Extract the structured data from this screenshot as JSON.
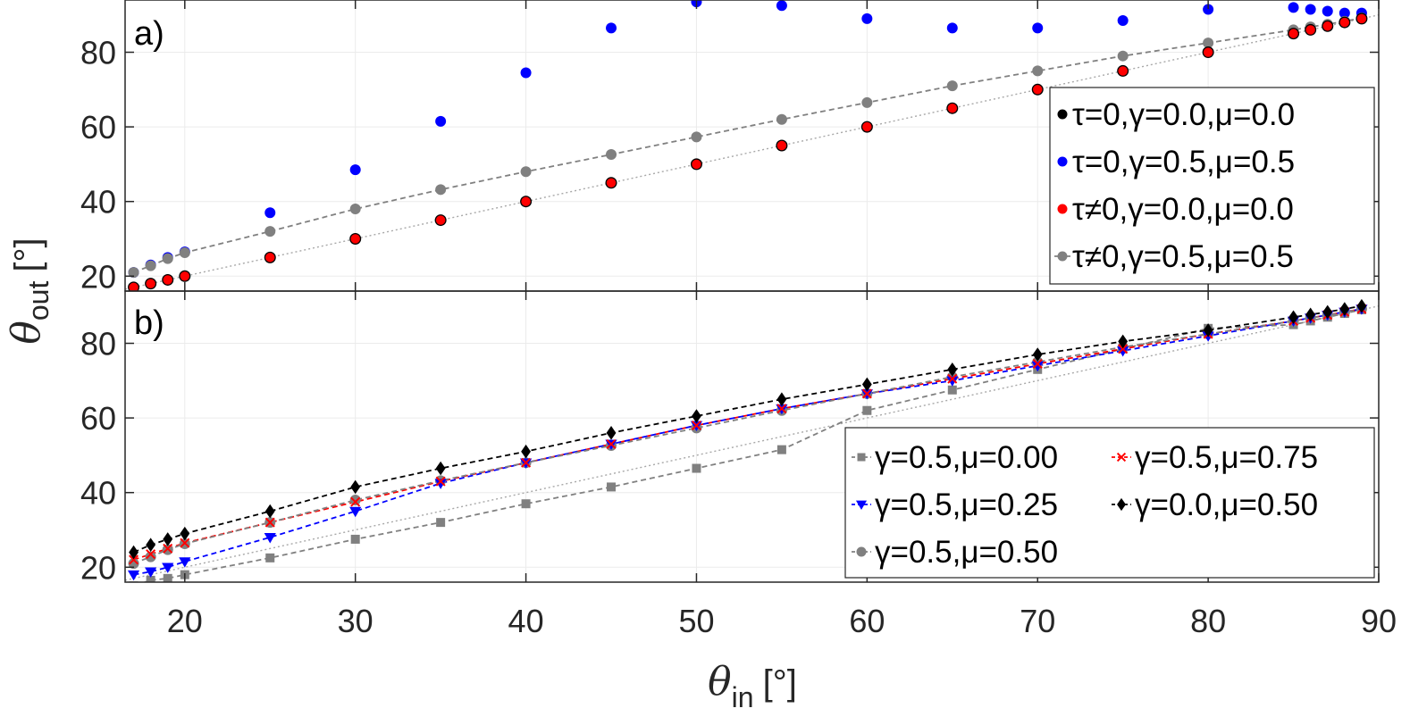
{
  "chart_data": [
    {
      "type": "scatter",
      "panel_label": "a)",
      "xlim": [
        16.5,
        90
      ],
      "ylim": [
        16,
        94
      ],
      "yticks": [
        20,
        40,
        60,
        80
      ],
      "grid": true,
      "legend_position": "right",
      "series": [
        {
          "key": "tau0_g0_m0",
          "name": "τ=0,γ=0.0,μ=0.0",
          "color": "#000000",
          "marker": "circle",
          "x": [
            17,
            18,
            19,
            20,
            25,
            30,
            35,
            40,
            45,
            50,
            55,
            60,
            65,
            70,
            75,
            80,
            85,
            86,
            87,
            88,
            89
          ],
          "y": [
            17,
            18,
            19,
            20,
            25,
            30,
            35,
            40,
            45,
            50,
            55,
            60,
            65,
            70,
            75,
            80,
            85,
            86,
            87,
            88,
            89
          ]
        },
        {
          "key": "tau0_g05_m05",
          "name": "τ=0,γ=0.5,μ=0.5",
          "color": "#0000ff",
          "marker": "circle",
          "x": [
            17,
            18,
            19,
            20,
            25,
            30,
            35,
            40,
            45,
            50,
            55,
            60,
            65,
            70,
            75,
            80,
            85,
            86,
            87,
            88,
            89
          ],
          "y": [
            21,
            23,
            25,
            26.5,
            37,
            48.5,
            61.5,
            74.5,
            86.5,
            93.5,
            92.5,
            89,
            86.5,
            86.5,
            88.5,
            91.5,
            92,
            91.5,
            91,
            90.5,
            90.5
          ]
        },
        {
          "key": "taun_g0_m0",
          "name": "τ≠0,γ=0.0,μ=0.0",
          "color": "#ff0000",
          "marker": "circle",
          "x": [
            17,
            18,
            19,
            20,
            25,
            30,
            35,
            40,
            45,
            50,
            55,
            60,
            65,
            70,
            75,
            80,
            85,
            86,
            87,
            88,
            89
          ],
          "y": [
            17,
            18,
            19,
            20,
            25,
            30,
            35,
            40,
            45,
            50,
            55,
            60,
            65,
            70,
            75,
            80,
            85,
            86,
            87,
            88,
            89
          ]
        },
        {
          "key": "taun_g05_m05",
          "name": "τ≠0,γ=0.5,μ=0.5",
          "color": "#808080",
          "marker": "circle",
          "line": "dashed",
          "x": [
            17,
            18,
            19,
            20,
            25,
            30,
            35,
            40,
            45,
            50,
            55,
            60,
            65,
            70,
            75,
            80,
            85,
            86,
            87,
            88,
            89
          ],
          "y": [
            21,
            22.8,
            24.7,
            26.3,
            32,
            38,
            43.2,
            48,
            52.6,
            57.3,
            62,
            66.5,
            71,
            75,
            79,
            82.5,
            86,
            86.8,
            87.5,
            88.3,
            89.2
          ]
        }
      ]
    },
    {
      "type": "line",
      "panel_label": "b)",
      "xlim": [
        16.5,
        90
      ],
      "ylim": [
        16,
        94
      ],
      "yticks": [
        20,
        40,
        60,
        80
      ],
      "xticks": [
        20,
        30,
        40,
        50,
        60,
        70,
        80,
        90
      ],
      "grid": true,
      "legend_position": "bottom-right",
      "series": [
        {
          "key": "g05_m000",
          "name": "γ=0.5,μ=0.00",
          "color": "#808080",
          "marker": "square",
          "line": "dashed",
          "x": [
            17,
            18,
            19,
            20,
            25,
            30,
            35,
            40,
            45,
            50,
            55,
            60,
            65,
            70,
            75,
            80,
            85,
            86,
            87,
            88,
            89
          ],
          "y": [
            15,
            16.5,
            17,
            18,
            22.5,
            27.5,
            32,
            37,
            41.5,
            46.5,
            51.5,
            62,
            67.5,
            73,
            78.5,
            84,
            85,
            86,
            87,
            88,
            89
          ]
        },
        {
          "key": "g05_m075",
          "name": "γ=0.5,μ=0.75",
          "color": "#ff0000",
          "marker": "x",
          "line": "dashed",
          "x": [
            17,
            18,
            19,
            20,
            25,
            30,
            35,
            40,
            45,
            50,
            55,
            60,
            65,
            70,
            75,
            80,
            85,
            86,
            87,
            88,
            89
          ],
          "y": [
            22,
            23.5,
            25,
            26.5,
            32,
            37.5,
            43,
            48,
            53,
            58,
            62.5,
            66.5,
            70.5,
            74.5,
            78.5,
            82.5,
            86,
            86.8,
            87.6,
            88.4,
            89.2
          ]
        },
        {
          "key": "g05_m025",
          "name": "γ=0.5,μ=0.25",
          "color": "#0000ff",
          "marker": "triangle-down",
          "line": "dashed",
          "x": [
            17,
            18,
            19,
            20,
            25,
            30,
            35,
            40,
            45,
            50,
            55,
            60,
            65,
            70,
            75,
            80,
            85,
            86,
            87,
            88,
            89
          ],
          "y": [
            18,
            18.8,
            20,
            21.5,
            28,
            35,
            42.5,
            48,
            53,
            58,
            62.5,
            66.5,
            70,
            74,
            78,
            82,
            86,
            86.8,
            87.6,
            88.4,
            89.2
          ]
        },
        {
          "key": "g00_m050",
          "name": "γ=0.0,μ=0.50",
          "color": "#000000",
          "marker": "diamond",
          "line": "dashed",
          "x": [
            17,
            18,
            19,
            20,
            25,
            30,
            35,
            40,
            45,
            50,
            55,
            60,
            65,
            70,
            75,
            80,
            85,
            86,
            87,
            88,
            89
          ],
          "y": [
            24,
            26,
            27.5,
            29,
            35,
            41.5,
            46.5,
            51,
            56,
            60.5,
            65,
            69,
            73,
            77,
            80.5,
            83.5,
            87,
            87.7,
            88.4,
            89.2,
            90
          ]
        },
        {
          "key": "g05_m050",
          "name": "γ=0.5,μ=0.50",
          "color": "#808080",
          "marker": "circle",
          "line": "dashed",
          "x": [
            17,
            18,
            19,
            20,
            25,
            30,
            35,
            40,
            45,
            50,
            55,
            60,
            65,
            70,
            75,
            80,
            85,
            86,
            87,
            88,
            89
          ],
          "y": [
            21,
            22.8,
            24.7,
            26.3,
            32,
            38,
            43.2,
            48,
            52.6,
            57.3,
            62,
            66.5,
            71,
            75,
            79,
            82.5,
            86,
            86.8,
            87.5,
            88.3,
            89.2
          ]
        }
      ],
      "legend_order": [
        [
          "g05_m000",
          "g05_m075"
        ],
        [
          "g05_m025",
          "g00_m050"
        ],
        [
          "g05_m050"
        ]
      ]
    }
  ],
  "axes": {
    "ylabel_symbol": "θ",
    "ylabel_sub": "out",
    "ylabel_unit": "[°]",
    "xlabel_symbol": "θ",
    "xlabel_sub": "in",
    "xlabel_unit": "[°]"
  }
}
